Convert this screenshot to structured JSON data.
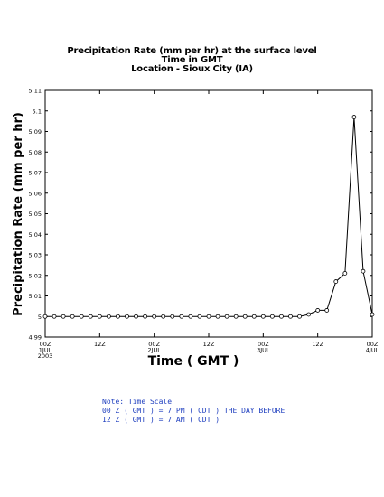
{
  "chart_data": {
    "type": "line",
    "title": "Precipitation Rate (mm per hr) at the surface level",
    "subtitle_lines": [
      "Time in GMT",
      "Location - Sioux City (IA)"
    ],
    "xlabel": "Time ( GMT )",
    "ylabel": "Precipitation Rate (mm per hr)",
    "ylim": [
      4.99,
      5.11
    ],
    "y_ticks": [
      "5.11",
      "5.1",
      "5.09",
      "5.08",
      "5.07",
      "5.06",
      "5.05",
      "5.04",
      "5.03",
      "5.02",
      "5.01",
      "5",
      "4.99"
    ],
    "y_tick_values": [
      5.11,
      5.1,
      5.09,
      5.08,
      5.07,
      5.06,
      5.05,
      5.04,
      5.03,
      5.02,
      5.01,
      5,
      4.99
    ],
    "x_hours_range": [
      0,
      72
    ],
    "x_ticks": [
      {
        "hour": 0,
        "line1": "00Z",
        "line2": "1JUL",
        "line3": "2003"
      },
      {
        "hour": 12,
        "line1": "12Z",
        "line2": "",
        "line3": ""
      },
      {
        "hour": 24,
        "line1": "00Z",
        "line2": "2JUL",
        "line3": ""
      },
      {
        "hour": 36,
        "line1": "12Z",
        "line2": "",
        "line3": ""
      },
      {
        "hour": 48,
        "line1": "00Z",
        "line2": "3JUL",
        "line3": ""
      },
      {
        "hour": 60,
        "line1": "12Z",
        "line2": "",
        "line3": ""
      },
      {
        "hour": 72,
        "line1": "00Z",
        "line2": "4JUL",
        "line3": ""
      }
    ],
    "grid": false,
    "series": [
      {
        "x_hours": [
          0,
          2,
          4,
          6,
          8,
          10,
          12,
          14,
          16,
          18,
          20,
          22,
          24,
          26,
          28,
          30,
          32,
          34,
          36,
          38,
          40,
          42,
          44,
          46,
          48,
          50,
          52,
          54,
          56,
          58,
          60,
          62,
          64,
          66,
          68,
          70,
          72
        ],
        "values": [
          5,
          5,
          5,
          5,
          5,
          5,
          5,
          5,
          5,
          5,
          5,
          5,
          5,
          5,
          5,
          5,
          5,
          5,
          5,
          5,
          5,
          5,
          5,
          5,
          5,
          5,
          5,
          5,
          5,
          5.001,
          5.003,
          5.003,
          5.017,
          5.021,
          5.097,
          5.022,
          5.001
        ]
      }
    ]
  },
  "note": {
    "line1": "Note: Time Scale",
    "line2": "00 Z ( GMT ) = 7 PM ( CDT ) THE DAY BEFORE",
    "line3": "12 Z ( GMT ) = 7 AM ( CDT )"
  },
  "colors": {
    "axis": "#000000",
    "line": "#000000",
    "note": "#1f3fbf"
  }
}
